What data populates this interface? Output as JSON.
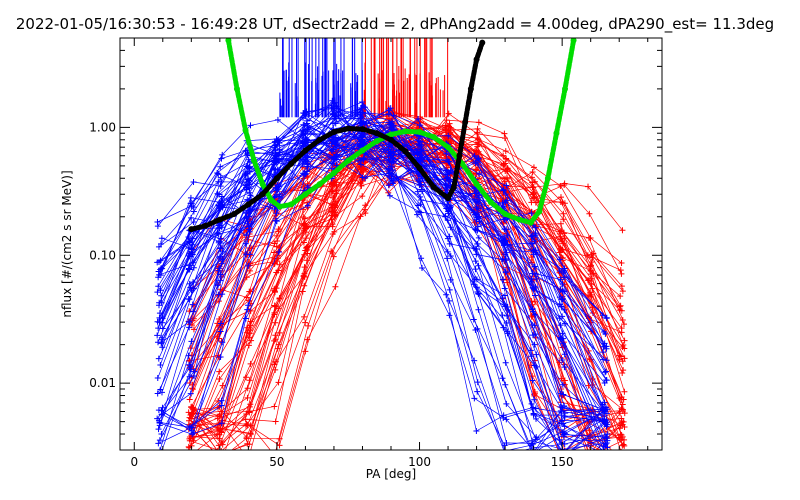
{
  "chart_data": {
    "type": "line",
    "title": "2022-01-05/16:30:53 - 16:49:28 UT, dSectr2add = 2, dPhAng2add = 4.00deg, dPA290_est=  11.3deg",
    "xlabel": "PA [deg]",
    "ylabel": "nflux [#/(cm2 s sr MeV)]",
    "xlim": [
      -5,
      185
    ],
    "ylim": [
      0.003,
      5.0
    ],
    "yscale": "log",
    "x_ticks": [
      0,
      50,
      100,
      150
    ],
    "x_tick_labels": [
      "0",
      "50",
      "100",
      "150"
    ],
    "y_ticks": [
      0.01,
      0.1,
      1.0
    ],
    "y_tick_labels": [
      "0.01",
      "0.10",
      "1.00"
    ],
    "grid": false,
    "series": [
      {
        "key": "blue_traces",
        "color": "#0000ff",
        "marker": "+",
        "description_style": "many thin lines with plus markers",
        "trace_x": [
          9,
          20,
          30,
          40,
          50,
          60,
          70,
          80,
          90,
          100,
          110,
          120,
          130,
          140,
          150,
          165
        ],
        "center": 75,
        "peak": 0.95
      },
      {
        "key": "red_traces",
        "color": "#ff0000",
        "marker": "+",
        "trace_x": [
          20,
          30,
          40,
          50,
          60,
          70,
          80,
          90,
          100,
          110,
          120,
          130,
          140,
          150,
          160,
          171
        ],
        "center": 98,
        "peak": 0.85
      },
      {
        "key": "black_fit",
        "color": "#000000",
        "x": [
          20,
          25,
          30,
          35,
          40,
          45,
          50,
          55,
          60,
          65,
          70,
          75,
          80,
          85,
          90,
          95,
          100,
          105,
          110,
          112,
          114,
          116,
          118,
          120,
          122
        ],
        "y": [
          0.16,
          0.17,
          0.19,
          0.21,
          0.25,
          0.3,
          0.4,
          0.52,
          0.66,
          0.8,
          0.92,
          0.98,
          0.97,
          0.9,
          0.8,
          0.65,
          0.48,
          0.34,
          0.28,
          0.34,
          0.6,
          1.1,
          2.0,
          3.4,
          4.6
        ]
      },
      {
        "key": "green_fit",
        "color": "#00dd00",
        "x": [
          33,
          36,
          39,
          42,
          45,
          48,
          51,
          55,
          60,
          65,
          70,
          75,
          80,
          85,
          90,
          95,
          100,
          105,
          110,
          115,
          120,
          125,
          130,
          135,
          139,
          142,
          145,
          148,
          151,
          154
        ],
        "y": [
          4.8,
          2.0,
          0.95,
          0.55,
          0.36,
          0.27,
          0.24,
          0.25,
          0.3,
          0.36,
          0.44,
          0.55,
          0.66,
          0.78,
          0.88,
          0.93,
          0.92,
          0.84,
          0.7,
          0.52,
          0.36,
          0.26,
          0.21,
          0.19,
          0.18,
          0.22,
          0.4,
          0.9,
          2.0,
          4.8
        ]
      }
    ],
    "top_bars": {
      "blue": {
        "color": "#0000ff",
        "x_from": 50,
        "x_to": 80,
        "y_bottom": 1.2,
        "y_top": 5.0
      },
      "red": {
        "color": "#ff0000",
        "x_from": 80,
        "x_to": 110,
        "y_bottom": 1.2,
        "y_top": 5.0
      }
    }
  }
}
